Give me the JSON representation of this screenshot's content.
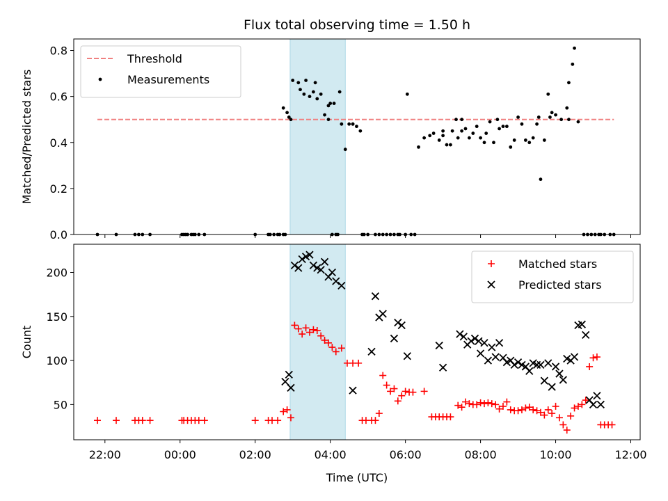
{
  "title": "Flux total observing time = 1.50 h",
  "chart_data": [
    {
      "type": "scatter",
      "panel": "top",
      "ylabel": "Matched/Predicted stars",
      "xlabel": "",
      "ylim": [
        0,
        0.85
      ],
      "yticks": [
        0.0,
        0.2,
        0.4,
        0.6,
        0.8
      ],
      "ytick_labels": [
        "0.0",
        "0.2",
        "0.4",
        "0.6",
        "0.8"
      ],
      "xlim": [
        21.17,
        36.25
      ],
      "legend_position": "top-left",
      "shaded_interval": [
        26.93,
        28.4
      ],
      "shade_color": "#add8e6",
      "threshold": {
        "name": "Threshold",
        "y": 0.5,
        "x": [
          21.8,
          35.55
        ],
        "color": "#f08080",
        "style": "dashed"
      },
      "series": [
        {
          "name": "Measurements",
          "color": "#000000",
          "marker": "dot",
          "x": [
            21.8,
            22.3,
            22.8,
            22.9,
            23.0,
            23.2,
            24.05,
            24.1,
            24.15,
            24.2,
            24.3,
            24.35,
            24.4,
            24.5,
            24.65,
            26.0,
            26.35,
            26.4,
            26.5,
            26.6,
            26.65,
            26.75,
            26.8,
            26.9,
            27.0,
            27.15,
            27.2,
            27.3,
            27.35,
            27.45,
            27.55,
            27.65,
            27.75,
            27.85,
            27.95,
            28.05,
            28.15,
            28.2,
            28.3,
            28.4,
            28.5,
            28.6,
            28.7,
            28.8,
            28.85,
            28.9,
            29.0,
            29.2,
            29.3,
            29.4,
            29.5,
            29.6,
            29.7,
            29.8,
            29.85,
            30.0,
            30.15,
            30.25,
            30.35,
            30.5,
            30.65,
            30.75,
            30.9,
            31.0,
            31.25,
            31.35,
            31.4,
            31.5,
            31.6,
            31.7,
            31.8,
            31.9,
            32.0,
            32.1,
            32.15,
            32.25,
            32.35,
            32.5,
            32.6,
            32.7,
            32.8,
            32.9,
            33.0,
            33.1,
            33.2,
            33.3,
            33.4,
            33.5,
            33.6,
            33.7,
            33.8,
            33.9,
            34.0,
            34.15,
            34.3,
            34.35,
            34.45,
            34.5,
            34.6,
            34.75,
            34.85,
            34.95,
            35.05,
            35.15,
            35.2,
            35.3,
            35.45,
            35.55
          ],
          "y": [
            0.0,
            0.0,
            0.0,
            0.0,
            0.0,
            0.0,
            0.0,
            0.0,
            0.0,
            0.0,
            0.0,
            0.0,
            0.0,
            0.0,
            0.0,
            0.0,
            0.0,
            0.0,
            0.0,
            0.0,
            0.0,
            0.0,
            0.0,
            0.51,
            0.67,
            0.66,
            0.63,
            0.61,
            0.67,
            0.6,
            0.62,
            0.59,
            0.61,
            0.52,
            0.5,
            0.0,
            0.0,
            0.0,
            0.48,
            0.37,
            0.48,
            0.48,
            0.47,
            0.45,
            0.0,
            0.0,
            0.0,
            0.0,
            0.0,
            0.0,
            0.0,
            0.0,
            0.0,
            0.0,
            0.0,
            0.0,
            0.0,
            0.0,
            0.38,
            0.42,
            0.43,
            0.44,
            0.41,
            0.43,
            0.45,
            0.5,
            0.42,
            0.45,
            0.46,
            0.42,
            0.44,
            0.47,
            0.42,
            0.4,
            0.44,
            0.49,
            0.4,
            0.46,
            0.47,
            0.47,
            0.38,
            0.41,
            0.51,
            0.48,
            0.41,
            0.4,
            0.42,
            0.48,
            0.24,
            0.41,
            0.61,
            0.53,
            0.52,
            0.5,
            0.55,
            0.66,
            0.74,
            0.81,
            0.49,
            0.0,
            0.0,
            0.0,
            0.0,
            0.0,
            0.0,
            0.0,
            0.0,
            0.0
          ]
        },
        {
          "name": "",
          "color": "#000000",
          "marker": "dot",
          "x": [
            26.75,
            26.85,
            26.95,
            27.6,
            27.95,
            28.0,
            28.1,
            28.25,
            28.6,
            30.05,
            31.0,
            31.1,
            31.2,
            31.5,
            32.45,
            33.55,
            33.85,
            34.35
          ],
          "y": [
            0.55,
            0.53,
            0.5,
            0.66,
            0.56,
            0.57,
            0.57,
            0.62,
            0.48,
            0.61,
            0.45,
            0.39,
            0.39,
            0.5,
            0.5,
            0.51,
            0.51,
            0.5
          ]
        }
      ]
    },
    {
      "type": "scatter",
      "panel": "bottom",
      "ylabel": "Count",
      "xlabel": "Time (UTC)",
      "ylim": [
        10,
        232
      ],
      "yticks": [
        50,
        100,
        150,
        200
      ],
      "ytick_labels": [
        "50",
        "100",
        "150",
        "200"
      ],
      "xlim": [
        21.17,
        36.25
      ],
      "xticks": [
        22,
        24,
        26,
        28,
        30,
        32,
        34,
        36
      ],
      "xtick_labels": [
        "22:00",
        "00:00",
        "02:00",
        "04:00",
        "06:00",
        "08:00",
        "10:00",
        "12:00"
      ],
      "legend_position": "top-right",
      "shaded_interval": [
        26.93,
        28.4
      ],
      "shade_color": "#add8e6",
      "series": [
        {
          "name": "Matched stars",
          "color": "#ff0000",
          "marker": "plus",
          "x": [
            21.8,
            22.3,
            22.8,
            22.9,
            23.0,
            23.2,
            24.05,
            24.1,
            24.2,
            24.3,
            24.4,
            24.5,
            24.65,
            26.0,
            26.35,
            26.45,
            26.6,
            26.75,
            26.85,
            26.95,
            27.05,
            27.15,
            27.25,
            27.35,
            27.45,
            27.55,
            27.65,
            27.75,
            27.85,
            27.95,
            28.05,
            28.15,
            28.3,
            28.45,
            28.6,
            28.75,
            28.85,
            28.95,
            29.1,
            29.2,
            29.3,
            29.4,
            29.5,
            29.6,
            29.7,
            29.8,
            29.9,
            30.0,
            30.1,
            30.2,
            30.5,
            30.7,
            30.8,
            30.9,
            31.0,
            31.1,
            31.2,
            31.4,
            31.5,
            31.6,
            31.7,
            31.8,
            31.9,
            32.0,
            32.1,
            32.2,
            32.3,
            32.4,
            32.5,
            32.6,
            32.7,
            32.8,
            32.9,
            33.0,
            33.1,
            33.2,
            33.3,
            33.4,
            33.5,
            33.6,
            33.7,
            33.8,
            33.9,
            34.0,
            34.1,
            34.2,
            34.3,
            34.4,
            34.5,
            34.6,
            34.7,
            34.8,
            34.9,
            35.0,
            35.1,
            35.2,
            35.3,
            35.4,
            35.5
          ],
          "y": [
            32,
            32,
            32,
            32,
            32,
            32,
            32,
            32,
            32,
            32,
            32,
            32,
            32,
            32,
            32,
            32,
            32,
            42,
            44,
            35,
            140,
            136,
            130,
            137,
            132,
            135,
            134,
            128,
            123,
            120,
            115,
            110,
            114,
            97,
            97,
            97,
            32,
            32,
            32,
            32,
            40,
            83,
            72,
            65,
            68,
            54,
            60,
            65,
            64,
            64,
            65,
            36,
            36,
            36,
            36,
            36,
            36,
            49,
            47,
            53,
            51,
            50,
            50,
            52,
            51,
            52,
            51,
            50,
            45,
            48,
            53,
            44,
            43,
            43,
            44,
            46,
            47,
            44,
            43,
            41,
            38,
            44,
            40,
            48,
            35,
            27,
            21,
            37,
            46,
            48,
            50,
            55,
            93,
            103,
            104,
            27,
            27,
            27,
            27
          ]
        },
        {
          "name": "Predicted stars",
          "color": "#000000",
          "marker": "x",
          "x": [
            26.8,
            26.9,
            26.95,
            27.05,
            27.15,
            27.25,
            27.35,
            27.45,
            27.55,
            27.65,
            27.75,
            27.85,
            27.95,
            28.05,
            28.15,
            28.3,
            28.6,
            29.1,
            29.2,
            29.3,
            29.4,
            29.7,
            29.8,
            29.9,
            30.05,
            30.9,
            31.0,
            31.45,
            31.55,
            31.65,
            31.75,
            31.85,
            31.95,
            32.0,
            32.1,
            32.2,
            32.3,
            32.4,
            32.5,
            32.6,
            32.7,
            32.8,
            32.9,
            33.0,
            33.1,
            33.2,
            33.3,
            33.4,
            33.5,
            33.6,
            33.7,
            33.8,
            33.9,
            34.0,
            34.1,
            34.2,
            34.3,
            34.4,
            34.5,
            34.6,
            34.7,
            34.8,
            34.9,
            35.0,
            35.1,
            35.2
          ],
          "y": [
            76,
            84,
            69,
            208,
            205,
            215,
            218,
            220,
            208,
            205,
            203,
            212,
            195,
            200,
            190,
            185,
            66,
            110,
            173,
            149,
            153,
            125,
            143,
            140,
            105,
            117,
            92,
            130,
            127,
            118,
            122,
            125,
            122,
            108,
            120,
            100,
            115,
            104,
            120,
            103,
            98,
            100,
            95,
            98,
            95,
            93,
            88,
            97,
            95,
            95,
            77,
            97,
            70,
            93,
            85,
            78,
            102,
            100,
            104,
            140,
            141,
            129,
            55,
            50,
            60,
            50
          ]
        }
      ]
    }
  ]
}
